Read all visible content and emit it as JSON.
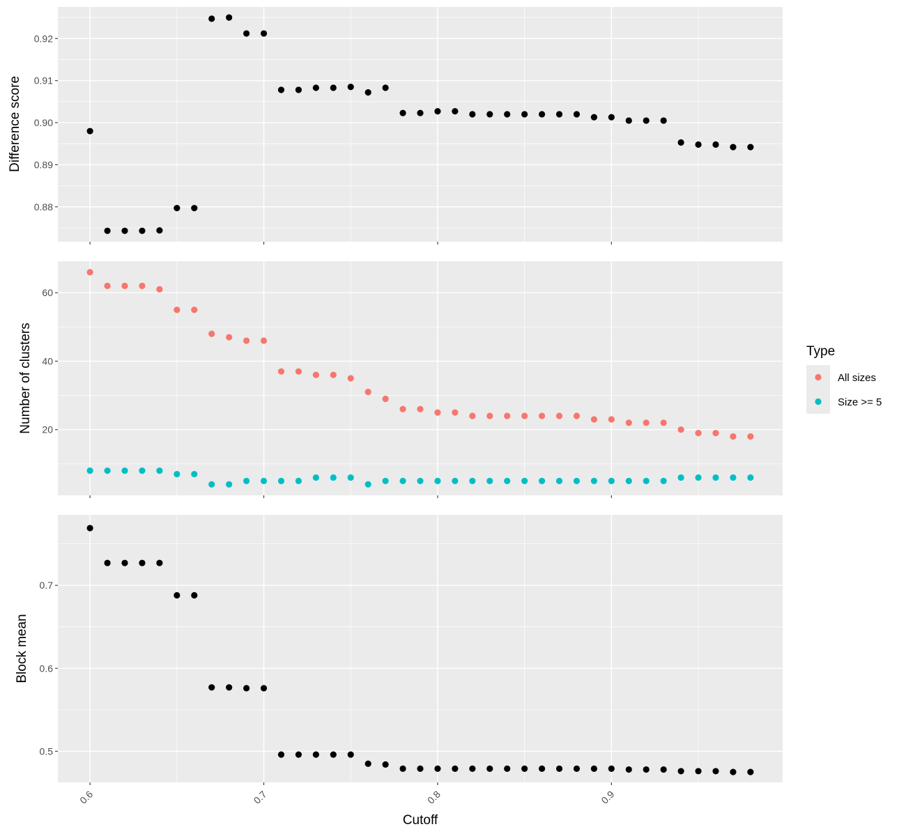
{
  "chart_data": {
    "type": "scatter",
    "xlabel": "Cutoff",
    "x_ticks": [
      0.6,
      0.7,
      0.8,
      0.9
    ],
    "x_tick_labels": [
      "0.6",
      "0.7",
      "0.8",
      "0.9"
    ],
    "xlim": [
      0.5815,
      0.9985
    ],
    "x": [
      0.6,
      0.61,
      0.62,
      0.63,
      0.64,
      0.65,
      0.66,
      0.67,
      0.68,
      0.69,
      0.7,
      0.71,
      0.72,
      0.73,
      0.74,
      0.75,
      0.76,
      0.77,
      0.78,
      0.79,
      0.8,
      0.81,
      0.82,
      0.83,
      0.84,
      0.85,
      0.86,
      0.87,
      0.88,
      0.89,
      0.9,
      0.91,
      0.92,
      0.93,
      0.94,
      0.95,
      0.96,
      0.97,
      0.98
    ],
    "background": "#ebebeb",
    "grid": true,
    "legend": {
      "title": "Type",
      "position": "right",
      "entries": [
        {
          "label": "All sizes",
          "color": "#f8766d"
        },
        {
          "label": "Size >= 5",
          "color": "#00bfc4"
        }
      ]
    },
    "panels": [
      {
        "ylabel": "Difference score",
        "ylim": [
          0.8717,
          0.9275
        ],
        "y_ticks": [
          0.88,
          0.89,
          0.9,
          0.91,
          0.92
        ],
        "y_tick_labels": [
          "0.88",
          "0.89",
          "0.90",
          "0.91",
          "0.92"
        ],
        "series": [
          {
            "color": "#000000",
            "values": [
              0.898,
              0.8743,
              0.8743,
              0.8743,
              0.8744,
              0.8797,
              0.8797,
              0.9247,
              0.925,
              0.9212,
              0.9212,
              0.9078,
              0.9078,
              0.9083,
              0.9083,
              0.9085,
              0.9072,
              0.9083,
              0.9023,
              0.9023,
              0.9027,
              0.9027,
              0.902,
              0.902,
              0.902,
              0.902,
              0.902,
              0.902,
              0.902,
              0.9013,
              0.9013,
              0.9005,
              0.9005,
              0.9005,
              0.8953,
              0.8948,
              0.8948,
              0.8942,
              0.8942
            ]
          }
        ]
      },
      {
        "ylabel": "Number of clusters",
        "ylim": [
          0.8,
          69.2
        ],
        "y_ticks": [
          20,
          40,
          60
        ],
        "y_tick_labels": [
          "20",
          "40",
          "60"
        ],
        "series": [
          {
            "name": "All sizes",
            "color": "#f8766d",
            "values": [
              66,
              62,
              62,
              62,
              61,
              55,
              55,
              48,
              47,
              46,
              46,
              37,
              37,
              36,
              36,
              35,
              31,
              29,
              26,
              26,
              25,
              25,
              24,
              24,
              24,
              24,
              24,
              24,
              24,
              23,
              23,
              22,
              22,
              22,
              20,
              19,
              19,
              18,
              18
            ]
          },
          {
            "name": "Size >= 5",
            "color": "#00bfc4",
            "values": [
              8,
              8,
              8,
              8,
              8,
              7,
              7,
              4,
              4,
              5,
              5,
              5,
              5,
              6,
              6,
              6,
              4,
              5,
              5,
              5,
              5,
              5,
              5,
              5,
              5,
              5,
              5,
              5,
              5,
              5,
              5,
              5,
              5,
              5,
              6,
              6,
              6,
              6,
              6
            ]
          }
        ]
      },
      {
        "ylabel": "Block mean",
        "ylim": [
          0.4625,
          0.785
        ],
        "y_ticks": [
          0.5,
          0.6,
          0.7
        ],
        "y_tick_labels": [
          "0.5",
          "0.6",
          "0.7"
        ],
        "series": [
          {
            "color": "#000000",
            "values": [
              0.769,
              0.727,
              0.727,
              0.727,
              0.727,
              0.688,
              0.688,
              0.577,
              0.577,
              0.576,
              0.576,
              0.496,
              0.496,
              0.496,
              0.496,
              0.496,
              0.485,
              0.484,
              0.479,
              0.479,
              0.479,
              0.479,
              0.479,
              0.479,
              0.479,
              0.479,
              0.479,
              0.479,
              0.479,
              0.479,
              0.479,
              0.478,
              0.478,
              0.478,
              0.476,
              0.476,
              0.476,
              0.475,
              0.475
            ]
          }
        ]
      }
    ]
  }
}
